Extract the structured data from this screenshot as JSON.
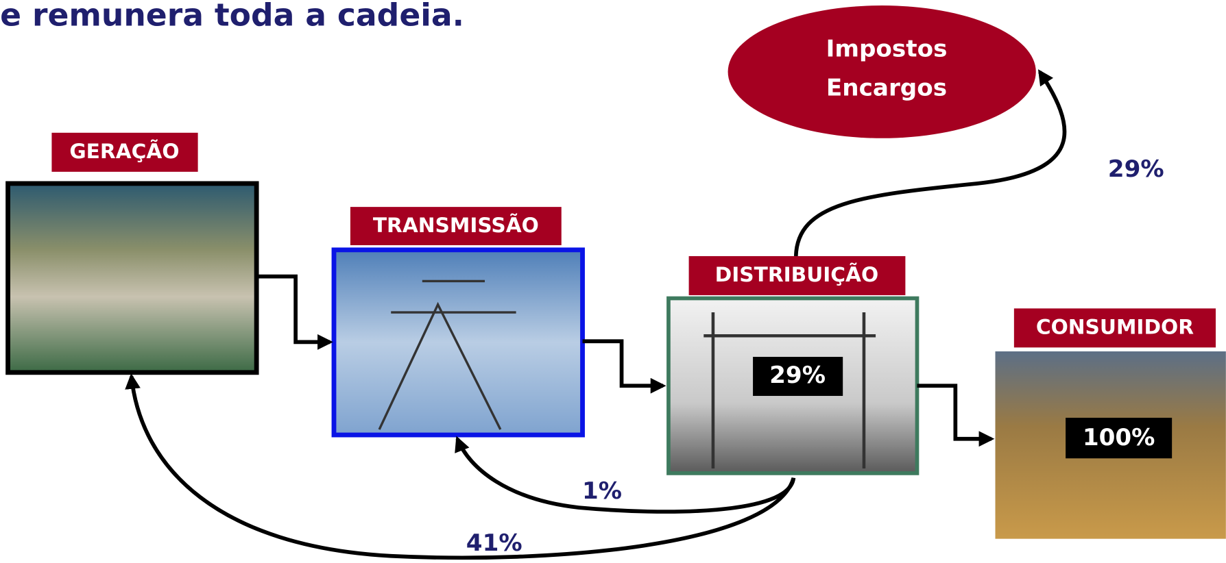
{
  "title": "e remunera toda a cadeia.",
  "nodes": [
    {
      "label": "GERAÇÃO"
    },
    {
      "label": "TRANSMISSÃO"
    },
    {
      "label": "DISTRIBUIÇÃO",
      "share": "29%"
    },
    {
      "label": "CONSUMIDOR",
      "share": "100%"
    },
    {
      "lines": [
        "Impostos",
        "Encargos"
      ]
    }
  ],
  "flows": [
    {
      "label": "29%"
    },
    {
      "label": "1%"
    },
    {
      "label": "41%"
    }
  ]
}
